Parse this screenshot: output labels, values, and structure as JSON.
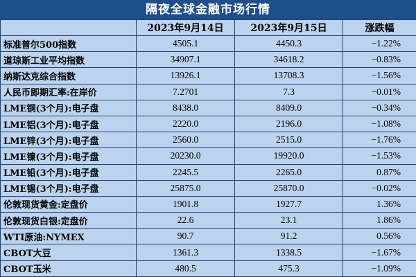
{
  "title": "隔夜全球金融市场行情",
  "columns": [
    "",
    "2023年9月14日",
    "2023年9月15日",
    "涨跌幅"
  ],
  "rows": [
    {
      "name": "标准普尔500指数",
      "d1": "4505.1",
      "d2": "4450.3",
      "chg": "−1.22%"
    },
    {
      "name": "道琼斯工业平均指数",
      "d1": "34907.1",
      "d2": "34618.2",
      "chg": "−0.83%"
    },
    {
      "name": "纳斯达克综合指数",
      "d1": "13926.1",
      "d2": "13708.3",
      "chg": "−1.56%"
    },
    {
      "name": "人民币即期汇率:在岸价",
      "d1": "7.2701",
      "d2": "7.3",
      "chg": "−0.01%"
    },
    {
      "name": "LME铜(3个月):电子盘",
      "d1": "8438.0",
      "d2": "8409.0",
      "chg": "−0.34%"
    },
    {
      "name": "LME铝(3个月):电子盘",
      "d1": "2220.0",
      "d2": "2196.0",
      "chg": "−1.08%"
    },
    {
      "name": "LME锌(3个月):电子盘",
      "d1": "2560.0",
      "d2": "2515.0",
      "chg": "−1.76%"
    },
    {
      "name": "LME镍(3个月):电子盘",
      "d1": "20230.0",
      "d2": "19920.0",
      "chg": "−1.53%"
    },
    {
      "name": "LME铅(3个月):电子盘",
      "d1": "2245.5",
      "d2": "2265.0",
      "chg": "0.87%"
    },
    {
      "name": "LME锡(3个月):电子盘",
      "d1": "25875.0",
      "d2": "25870.0",
      "chg": "−0.02%"
    },
    {
      "name": "伦敦现货黄金:定盘价",
      "d1": "1901.8",
      "d2": "1927.7",
      "chg": "1.36%"
    },
    {
      "name": "伦敦现货白银:定盘价",
      "d1": "22.6",
      "d2": "23.1",
      "chg": "1.86%"
    },
    {
      "name": "WTI原油:NYMEX",
      "d1": "90.7",
      "d2": "91.2",
      "chg": "0.56%"
    },
    {
      "name": "CBOT大豆",
      "d1": "1361.3",
      "d2": "1338.5",
      "chg": "−1.67%"
    },
    {
      "name": "CBOT玉米",
      "d1": "480.5",
      "d2": "475.3",
      "chg": "−1.09%"
    }
  ],
  "colors": {
    "header_bg": "#1f4e8c",
    "cell_bg": "#bcd3ee",
    "border": "#1f3f7a"
  }
}
